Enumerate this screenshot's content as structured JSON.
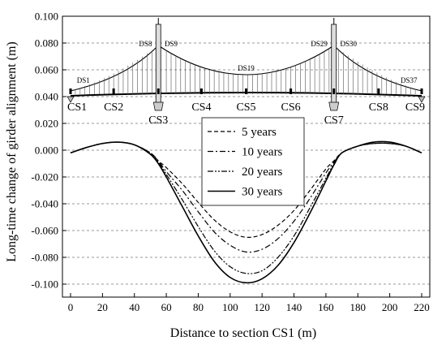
{
  "chart_data": {
    "type": "line",
    "xlabel": "Distance to section CS1 (m)",
    "ylabel": "Long-time change of girder alignment (m)",
    "xlim": [
      0,
      220
    ],
    "ylim": [
      -0.1,
      0.1
    ],
    "x_ticks": [
      "0",
      "20",
      "40",
      "60",
      "80",
      "100",
      "120",
      "140",
      "160",
      "180",
      "200",
      "220"
    ],
    "y_ticks": [
      "0.100",
      "0.080",
      "0.060",
      "0.040",
      "0.020",
      "0.000",
      "-0.020",
      "-0.040",
      "-0.060",
      "-0.080",
      "-0.100"
    ],
    "grid": "horizontal dashed",
    "legend_placement": "center",
    "x": [
      0,
      10,
      20,
      30,
      40,
      50,
      55,
      60,
      70,
      80,
      90,
      100,
      110,
      120,
      130,
      140,
      150,
      160,
      165,
      170,
      180,
      190,
      200,
      210,
      220
    ],
    "series": [
      {
        "name": "5 years",
        "style": "dash",
        "values": [
          -0.002,
          0.002,
          0.005,
          0.006,
          0.004,
          -0.002,
          -0.008,
          -0.013,
          -0.025,
          -0.039,
          -0.052,
          -0.061,
          -0.065,
          -0.063,
          -0.056,
          -0.045,
          -0.03,
          -0.014,
          -0.008,
          -0.002,
          0.003,
          0.005,
          0.005,
          0.003,
          -0.002
        ]
      },
      {
        "name": "10 years",
        "style": "dash-dot",
        "values": [
          -0.002,
          0.002,
          0.005,
          0.006,
          0.004,
          -0.002,
          -0.008,
          -0.016,
          -0.03,
          -0.046,
          -0.061,
          -0.071,
          -0.076,
          -0.074,
          -0.066,
          -0.053,
          -0.036,
          -0.017,
          -0.009,
          -0.002,
          0.003,
          0.005,
          0.005,
          0.003,
          -0.002
        ]
      },
      {
        "name": "20 years",
        "style": "dash-dot-dot",
        "values": [
          -0.002,
          0.002,
          0.005,
          0.006,
          0.004,
          -0.003,
          -0.009,
          -0.018,
          -0.037,
          -0.057,
          -0.075,
          -0.087,
          -0.092,
          -0.09,
          -0.08,
          -0.064,
          -0.043,
          -0.021,
          -0.01,
          -0.002,
          0.003,
          0.005,
          0.005,
          0.003,
          -0.002
        ]
      },
      {
        "name": "30 years",
        "style": "solid",
        "values": [
          -0.002,
          0.002,
          0.005,
          0.006,
          0.004,
          -0.003,
          -0.01,
          -0.02,
          -0.042,
          -0.064,
          -0.083,
          -0.095,
          -0.099,
          -0.096,
          -0.086,
          -0.069,
          -0.047,
          -0.023,
          -0.011,
          -0.002,
          0.003,
          0.006,
          0.006,
          0.003,
          -0.002
        ]
      }
    ],
    "inset": {
      "sections": [
        {
          "label": "CS1",
          "x": 0
        },
        {
          "label": "CS2",
          "x": 27
        },
        {
          "label": "CS3",
          "x": 55
        },
        {
          "label": "CS4",
          "x": 82
        },
        {
          "label": "CS5",
          "x": 110
        },
        {
          "label": "CS6",
          "x": 138
        },
        {
          "label": "CS7",
          "x": 165
        },
        {
          "label": "CS8",
          "x": 193
        },
        {
          "label": "CS9",
          "x": 220
        }
      ],
      "hangers": [
        {
          "label": "DS1",
          "x": 8
        },
        {
          "label": "DS8",
          "x": 49
        },
        {
          "label": "DS9",
          "x": 61
        },
        {
          "label": "DS19",
          "x": 110
        },
        {
          "label": "DS29",
          "x": 159
        },
        {
          "label": "DS30",
          "x": 171
        },
        {
          "label": "DS37",
          "x": 212
        }
      ]
    }
  }
}
